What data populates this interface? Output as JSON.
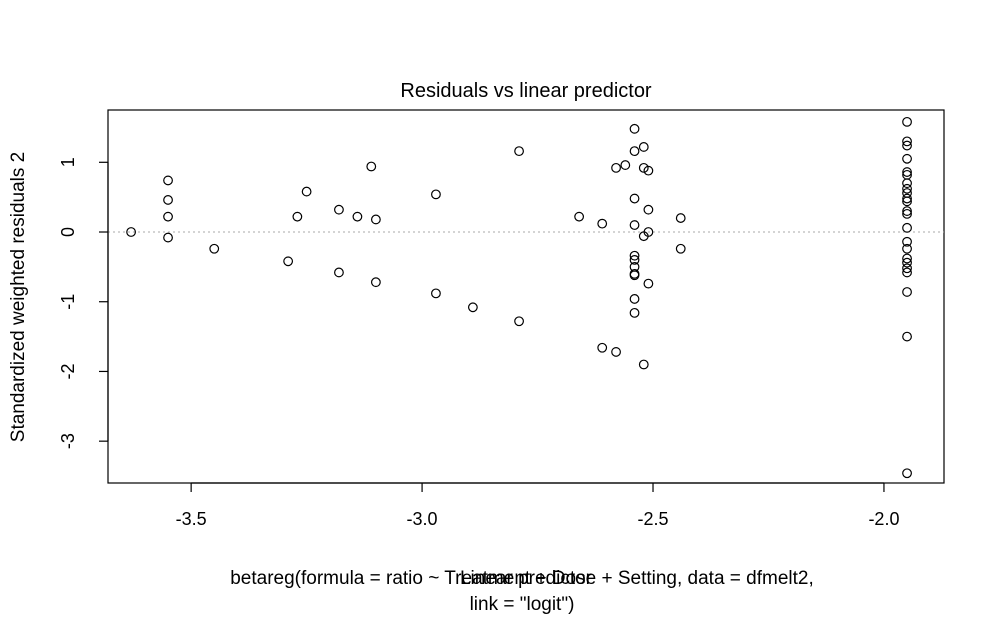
{
  "chart_data": {
    "type": "scatter",
    "title": "Residuals vs linear predictor",
    "xlabel": "Linear predictor",
    "ylabel": "Standardized weighted residuals 2",
    "subtitle_lines": [
      "betareg(formula = ratio ~ Treatment + Dose + Setting, data = dfmelt2,",
      "link = \"logit\")"
    ],
    "xlim": [
      -3.68,
      -1.87
    ],
    "ylim": [
      -3.6,
      1.75
    ],
    "x_ticks": [
      -3.5,
      -3.0,
      -2.5,
      -2.0
    ],
    "x_tick_labels": [
      "-3.5",
      "-3.0",
      "-2.5",
      "-2.0"
    ],
    "y_ticks": [
      -3,
      -2,
      -1,
      0,
      1
    ],
    "y_tick_labels": [
      "-3",
      "-2",
      "-1",
      "0",
      "1"
    ],
    "reference_line_y": 0,
    "grid": false,
    "marker": "open-circle",
    "points": [
      {
        "x": -3.63,
        "y": 0.0
      },
      {
        "x": -3.55,
        "y": 0.74
      },
      {
        "x": -3.55,
        "y": 0.46
      },
      {
        "x": -3.55,
        "y": 0.22
      },
      {
        "x": -3.55,
        "y": -0.08
      },
      {
        "x": -3.45,
        "y": -0.24
      },
      {
        "x": -3.29,
        "y": -0.42
      },
      {
        "x": -3.27,
        "y": 0.22
      },
      {
        "x": -3.25,
        "y": 0.58
      },
      {
        "x": -3.18,
        "y": 0.32
      },
      {
        "x": -3.18,
        "y": -0.58
      },
      {
        "x": -3.14,
        "y": 0.22
      },
      {
        "x": -3.11,
        "y": 0.94
      },
      {
        "x": -3.1,
        "y": 0.18
      },
      {
        "x": -3.1,
        "y": -0.72
      },
      {
        "x": -2.97,
        "y": 0.54
      },
      {
        "x": -2.97,
        "y": -0.88
      },
      {
        "x": -2.89,
        "y": -1.08
      },
      {
        "x": -2.79,
        "y": 1.16
      },
      {
        "x": -2.79,
        "y": -1.28
      },
      {
        "x": -2.66,
        "y": 0.22
      },
      {
        "x": -2.61,
        "y": 0.12
      },
      {
        "x": -2.61,
        "y": -1.66
      },
      {
        "x": -2.58,
        "y": 0.92
      },
      {
        "x": -2.58,
        "y": -1.72
      },
      {
        "x": -2.56,
        "y": 0.96
      },
      {
        "x": -2.54,
        "y": 1.48
      },
      {
        "x": -2.54,
        "y": 1.16
      },
      {
        "x": -2.54,
        "y": 0.48
      },
      {
        "x": -2.54,
        "y": 0.1
      },
      {
        "x": -2.54,
        "y": -0.34
      },
      {
        "x": -2.54,
        "y": -0.4
      },
      {
        "x": -2.54,
        "y": -0.5
      },
      {
        "x": -2.54,
        "y": -0.6
      },
      {
        "x": -2.54,
        "y": -0.62
      },
      {
        "x": -2.54,
        "y": -0.96
      },
      {
        "x": -2.54,
        "y": -1.16
      },
      {
        "x": -2.52,
        "y": 1.22
      },
      {
        "x": -2.52,
        "y": 0.92
      },
      {
        "x": -2.52,
        "y": -0.06
      },
      {
        "x": -2.52,
        "y": -1.9
      },
      {
        "x": -2.51,
        "y": 0.88
      },
      {
        "x": -2.51,
        "y": 0.32
      },
      {
        "x": -2.51,
        "y": 0.0
      },
      {
        "x": -2.51,
        "y": -0.74
      },
      {
        "x": -2.44,
        "y": 0.2
      },
      {
        "x": -2.44,
        "y": -0.24
      },
      {
        "x": -1.95,
        "y": 1.58
      },
      {
        "x": -1.95,
        "y": 1.3
      },
      {
        "x": -1.95,
        "y": 1.24
      },
      {
        "x": -1.95,
        "y": 1.05
      },
      {
        "x": -1.95,
        "y": 0.86
      },
      {
        "x": -1.95,
        "y": 0.82
      },
      {
        "x": -1.95,
        "y": 0.7
      },
      {
        "x": -1.95,
        "y": 0.62
      },
      {
        "x": -1.95,
        "y": 0.56
      },
      {
        "x": -1.95,
        "y": 0.48
      },
      {
        "x": -1.95,
        "y": 0.44
      },
      {
        "x": -1.95,
        "y": 0.3
      },
      {
        "x": -1.95,
        "y": 0.26
      },
      {
        "x": -1.95,
        "y": 0.06
      },
      {
        "x": -1.95,
        "y": -0.14
      },
      {
        "x": -1.95,
        "y": -0.24
      },
      {
        "x": -1.95,
        "y": -0.38
      },
      {
        "x": -1.95,
        "y": -0.44
      },
      {
        "x": -1.95,
        "y": -0.52
      },
      {
        "x": -1.95,
        "y": -0.58
      },
      {
        "x": -1.95,
        "y": -0.86
      },
      {
        "x": -1.95,
        "y": -1.5
      },
      {
        "x": -1.95,
        "y": -3.46
      }
    ]
  }
}
